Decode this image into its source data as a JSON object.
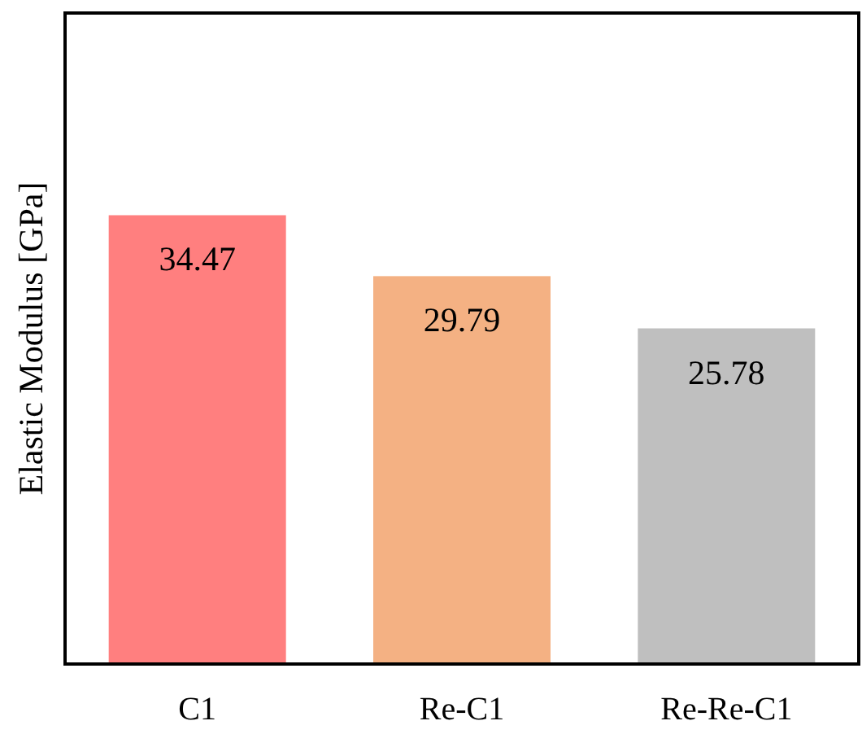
{
  "chart_data": {
    "type": "bar",
    "ylabel": "Elastic Modulus [GPa]",
    "categories": [
      "C1",
      "Re-C1",
      "Re-Re-C1"
    ],
    "values": [
      34.47,
      29.79,
      25.78
    ],
    "colors": [
      "#ff7f7f",
      "#f4b183",
      "#bfbfbf"
    ],
    "ylim": [
      0,
      50
    ],
    "tick_labels": "x",
    "data_labels": true
  }
}
